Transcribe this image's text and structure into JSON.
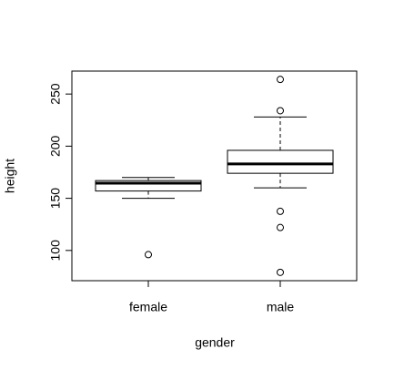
{
  "chart_data": {
    "type": "boxplot",
    "x_label": "gender",
    "y_label": "height",
    "categories": [
      "female",
      "male"
    ],
    "boxes": [
      {
        "min": 150,
        "q1": 157,
        "median": 164.5,
        "q3": 167,
        "max": 170,
        "outliers": [
          96
        ]
      },
      {
        "min": 160,
        "q1": 174,
        "median": 183,
        "q3": 196,
        "max": 228,
        "outliers": [
          264,
          234,
          137.5,
          122,
          79
        ]
      }
    ],
    "ylim": [
      71,
      272
    ],
    "yticks": [
      100,
      150,
      200,
      250
    ],
    "color": "#000000"
  }
}
